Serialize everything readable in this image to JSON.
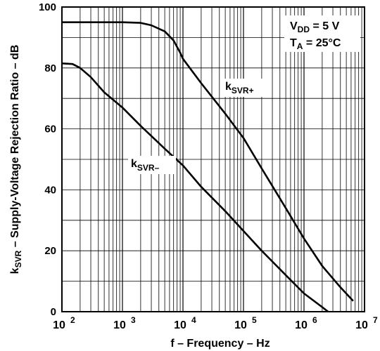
{
  "chart_data": {
    "type": "line",
    "title": "",
    "xlabel": "f – Frequency – Hz",
    "ylabel_main": "k",
    "ylabel_sub": "SVR",
    "ylabel_rest": " – Supply-Voltage Rejection Ratio – dB",
    "x_scale": "log",
    "xlim": [
      100,
      10000000
    ],
    "ylim": [
      0,
      100
    ],
    "x_ticks": [
      {
        "base": "10",
        "exp": "2",
        "value": 100
      },
      {
        "base": "10",
        "exp": "3",
        "value": 1000
      },
      {
        "base": "10",
        "exp": "4",
        "value": 10000
      },
      {
        "base": "10",
        "exp": "5",
        "value": 100000
      },
      {
        "base": "10",
        "exp": "6",
        "value": 1000000
      },
      {
        "base": "10",
        "exp": "7",
        "value": 10000000
      }
    ],
    "y_ticks": [
      "0",
      "20",
      "40",
      "60",
      "80",
      "100"
    ],
    "grid": true,
    "annotations": [
      {
        "main": "V",
        "sub": "DD",
        "rest": " = 5 V"
      },
      {
        "main": "T",
        "sub": "A",
        "rest": " = 25°C"
      }
    ],
    "series": [
      {
        "name_main": "k",
        "name_sub": "SVR+",
        "color": "#000000",
        "points": [
          [
            100,
            95
          ],
          [
            200,
            95
          ],
          [
            500,
            95
          ],
          [
            1000,
            95
          ],
          [
            2000,
            94.8
          ],
          [
            3000,
            94
          ],
          [
            5000,
            92
          ],
          [
            7000,
            89
          ],
          [
            9000,
            85
          ],
          [
            10000,
            83
          ],
          [
            20000,
            75
          ],
          [
            50000,
            65
          ],
          [
            100000,
            57
          ],
          [
            200000,
            47
          ],
          [
            500000,
            34
          ],
          [
            1000000,
            24
          ],
          [
            2000000,
            15
          ],
          [
            4000000,
            8
          ],
          [
            6500000,
            3.5
          ]
        ]
      },
      {
        "name_main": "k",
        "name_sub": "SVR–",
        "color": "#000000",
        "points": [
          [
            100,
            81.5
          ],
          [
            150,
            81.3
          ],
          [
            200,
            80
          ],
          [
            300,
            77
          ],
          [
            500,
            72
          ],
          [
            1000,
            67
          ],
          [
            2000,
            61
          ],
          [
            5000,
            53.5
          ],
          [
            10000,
            48
          ],
          [
            20000,
            41
          ],
          [
            50000,
            33
          ],
          [
            100000,
            26.5
          ],
          [
            200000,
            20
          ],
          [
            500000,
            12
          ],
          [
            1000000,
            6
          ],
          [
            2000000,
            1.5
          ],
          [
            2500000,
            0
          ]
        ]
      }
    ]
  }
}
